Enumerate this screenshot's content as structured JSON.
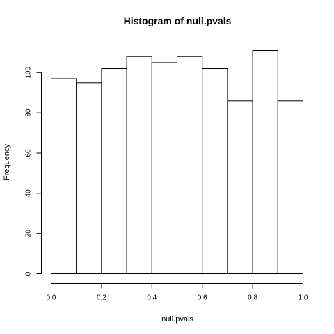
{
  "chart_data": {
    "type": "bar",
    "title": "Histogram of null.pvals",
    "xlabel": "null.pvals",
    "ylabel": "Frequency",
    "bin_edges": [
      0.0,
      0.1,
      0.2,
      0.3,
      0.4,
      0.5,
      0.6,
      0.7,
      0.8,
      0.9,
      1.0
    ],
    "values": [
      97,
      95,
      102,
      108,
      105,
      108,
      102,
      86,
      111,
      86
    ],
    "xlim": [
      0,
      1
    ],
    "ylim": [
      0,
      111
    ],
    "x_ticks": [
      0.0,
      0.2,
      0.4,
      0.6,
      0.8,
      1.0
    ],
    "x_tick_labels": [
      "0.0",
      "0.2",
      "0.4",
      "0.6",
      "0.8",
      "1.0"
    ],
    "y_ticks": [
      0,
      20,
      40,
      60,
      80,
      100
    ],
    "y_tick_labels": [
      "0",
      "20",
      "40",
      "60",
      "80",
      "100"
    ],
    "grid": false,
    "bar_fill": "#ffffff",
    "bar_stroke": "#000000"
  }
}
